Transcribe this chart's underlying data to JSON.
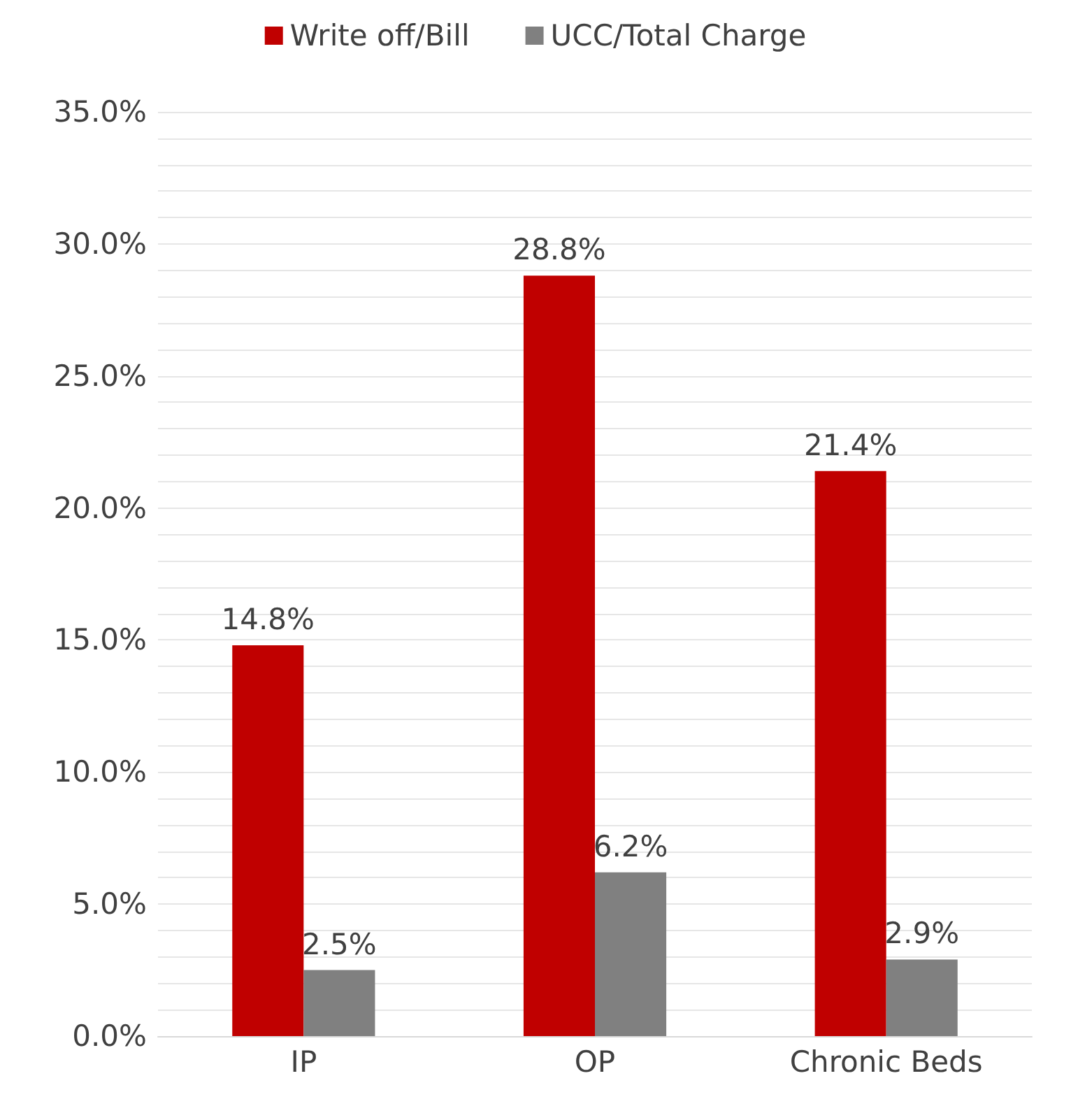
{
  "chart_data": {
    "type": "bar",
    "categories": [
      "IP",
      "OP",
      "Chronic Beds"
    ],
    "series": [
      {
        "name": "Write off/Bill",
        "color": "#c00000",
        "values": [
          14.8,
          28.8,
          21.4
        ],
        "value_labels": [
          "14.8%",
          "28.8%",
          "21.4%"
        ]
      },
      {
        "name": "UCC/Total Charge",
        "color": "#808080",
        "values": [
          2.5,
          6.2,
          2.9
        ],
        "value_labels": [
          "2.5%",
          "6.2%",
          "2.9%"
        ]
      }
    ],
    "ylim": [
      0,
      35
    ],
    "yticks": [
      {
        "value": 0,
        "label": "0.0%"
      },
      {
        "value": 1,
        "label": null
      },
      {
        "value": 2,
        "label": null
      },
      {
        "value": 3,
        "label": null
      },
      {
        "value": 4,
        "label": null
      },
      {
        "value": 5,
        "label": "5.0%"
      },
      {
        "value": 6,
        "label": null
      },
      {
        "value": 7,
        "label": null
      },
      {
        "value": 8,
        "label": null
      },
      {
        "value": 9,
        "label": null
      },
      {
        "value": 10,
        "label": "10.0%"
      },
      {
        "value": 11,
        "label": null
      },
      {
        "value": 12,
        "label": null
      },
      {
        "value": 13,
        "label": null
      },
      {
        "value": 14,
        "label": null
      },
      {
        "value": 15,
        "label": "15.0%"
      },
      {
        "value": 16,
        "label": null
      },
      {
        "value": 17,
        "label": null
      },
      {
        "value": 18,
        "label": null
      },
      {
        "value": 19,
        "label": null
      },
      {
        "value": 20,
        "label": "20.0%"
      },
      {
        "value": 21,
        "label": null
      },
      {
        "value": 22,
        "label": null
      },
      {
        "value": 23,
        "label": null
      },
      {
        "value": 24,
        "label": null
      },
      {
        "value": 25,
        "label": "25.0%"
      },
      {
        "value": 26,
        "label": null
      },
      {
        "value": 27,
        "label": null
      },
      {
        "value": 28,
        "label": null
      },
      {
        "value": 29,
        "label": null
      },
      {
        "value": 30,
        "label": "30.0%"
      },
      {
        "value": 31,
        "label": null
      },
      {
        "value": 32,
        "label": null
      },
      {
        "value": 33,
        "label": null
      },
      {
        "value": 34,
        "label": null
      },
      {
        "value": 35,
        "label": "35.0%"
      }
    ],
    "grid": "y",
    "legend": "top"
  }
}
